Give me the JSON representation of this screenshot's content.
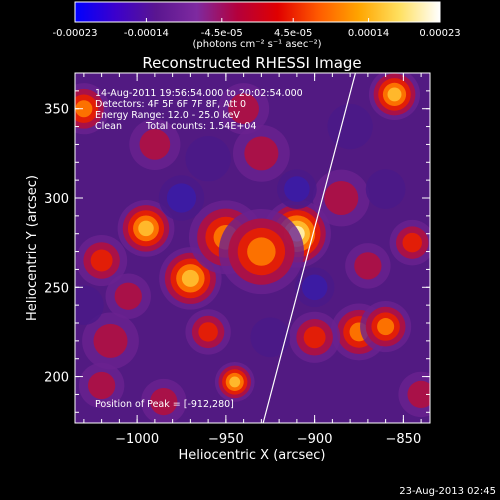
{
  "colorbar": {
    "tick_labels": [
      "-0.00023",
      "-0.00014",
      "-4.5e-05",
      "4.5e-05",
      "0.00014",
      "0.00023"
    ],
    "tick_values": [
      -0.00023,
      -0.00014,
      -4.5e-05,
      4.5e-05,
      0.00014,
      0.00023
    ],
    "range": [
      -0.00023,
      0.00023
    ],
    "unit_label": "(photons cm⁻² s⁻¹ asec⁻²)",
    "colors": [
      "#0000ff",
      "#3c00cc",
      "#5a1690",
      "#7e2aa0",
      "#b4003c",
      "#e00000",
      "#ff5a00",
      "#ffa500",
      "#ffe060",
      "#ffffff"
    ]
  },
  "image": {
    "title": "Reconstructed RHESSI Image",
    "info": {
      "time": "14-Aug-2011 19:56:54.000 to 20:02:54.000",
      "detectors": "Detectors: 4F 5F 6F 7F 8F, Att 0",
      "energy": "Energy Range: 12.0 - 25.0 keV",
      "clean_label": "Clean",
      "counts": "Total counts: 1.54E+04"
    },
    "peak_label": "Position of Peak = [-912,280]",
    "peak": [
      -912,
      280
    ],
    "limb_line": [
      [
        -929,
        174
      ],
      [
        -877,
        370
      ]
    ]
  },
  "axes": {
    "x_label": "Heliocentric X (arcsec)",
    "y_label": "Heliocentric Y (arcsec)",
    "x_range": [
      -1035,
      -835
    ],
    "y_range": [
      174,
      370
    ],
    "x_ticks": [
      -1000,
      -950,
      -900,
      -850
    ],
    "x_tick_labels": [
      "−1000",
      "−950",
      "−900",
      "−850"
    ],
    "y_ticks": [
      200,
      250,
      300,
      350
    ],
    "y_tick_labels": [
      "200",
      "250",
      "300",
      "350"
    ]
  },
  "blobs": [
    {
      "x": -910,
      "y": 280,
      "a": 1.0,
      "s": 12
    },
    {
      "x": -970,
      "y": 255,
      "a": 0.9,
      "s": 11
    },
    {
      "x": -995,
      "y": 283,
      "a": 0.85,
      "s": 10
    },
    {
      "x": -950,
      "y": 278,
      "a": 0.7,
      "s": 13
    },
    {
      "x": -930,
      "y": 270,
      "a": 0.7,
      "s": 15
    },
    {
      "x": -875,
      "y": 225,
      "a": 0.7,
      "s": 10
    },
    {
      "x": -860,
      "y": 228,
      "a": 0.6,
      "s": 9
    },
    {
      "x": -945,
      "y": 197,
      "a": 0.75,
      "s": 7
    },
    {
      "x": -900,
      "y": 222,
      "a": 0.5,
      "s": 9
    },
    {
      "x": -960,
      "y": 225,
      "a": 0.5,
      "s": 8
    },
    {
      "x": -1015,
      "y": 220,
      "a": 0.4,
      "s": 10
    },
    {
      "x": -1030,
      "y": 350,
      "a": 0.65,
      "s": 9
    },
    {
      "x": -855,
      "y": 358,
      "a": 0.8,
      "s": 9
    },
    {
      "x": -1020,
      "y": 265,
      "a": 0.45,
      "s": 9
    },
    {
      "x": -885,
      "y": 300,
      "a": 0.4,
      "s": 10
    },
    {
      "x": -845,
      "y": 275,
      "a": 0.45,
      "s": 8
    },
    {
      "x": -930,
      "y": 325,
      "a": 0.3,
      "s": 10
    },
    {
      "x": -990,
      "y": 330,
      "a": 0.3,
      "s": 9
    },
    {
      "x": -1020,
      "y": 195,
      "a": 0.35,
      "s": 8
    },
    {
      "x": -840,
      "y": 190,
      "a": 0.35,
      "s": 8
    },
    {
      "x": -870,
      "y": 262,
      "a": 0.35,
      "s": 8
    },
    {
      "x": -1005,
      "y": 245,
      "a": 0.4,
      "s": 8
    },
    {
      "x": -940,
      "y": 350,
      "a": 0.3,
      "s": 9
    },
    {
      "x": -985,
      "y": 186,
      "a": 0.3,
      "s": 8
    },
    {
      "x": -975,
      "y": 300,
      "a": -0.7,
      "s": 8
    },
    {
      "x": -910,
      "y": 305,
      "a": -0.55,
      "s": 7
    },
    {
      "x": -925,
      "y": 222,
      "a": -0.45,
      "s": 7
    },
    {
      "x": -900,
      "y": 250,
      "a": -0.6,
      "s": 7
    },
    {
      "x": -960,
      "y": 322,
      "a": -0.4,
      "s": 8
    },
    {
      "x": -860,
      "y": 305,
      "a": -0.4,
      "s": 7
    },
    {
      "x": -1030,
      "y": 240,
      "a": -0.35,
      "s": 7
    },
    {
      "x": -880,
      "y": 340,
      "a": -0.35,
      "s": 8
    }
  ],
  "footer": {
    "timestamp": "23-Aug-2013 02:45"
  }
}
